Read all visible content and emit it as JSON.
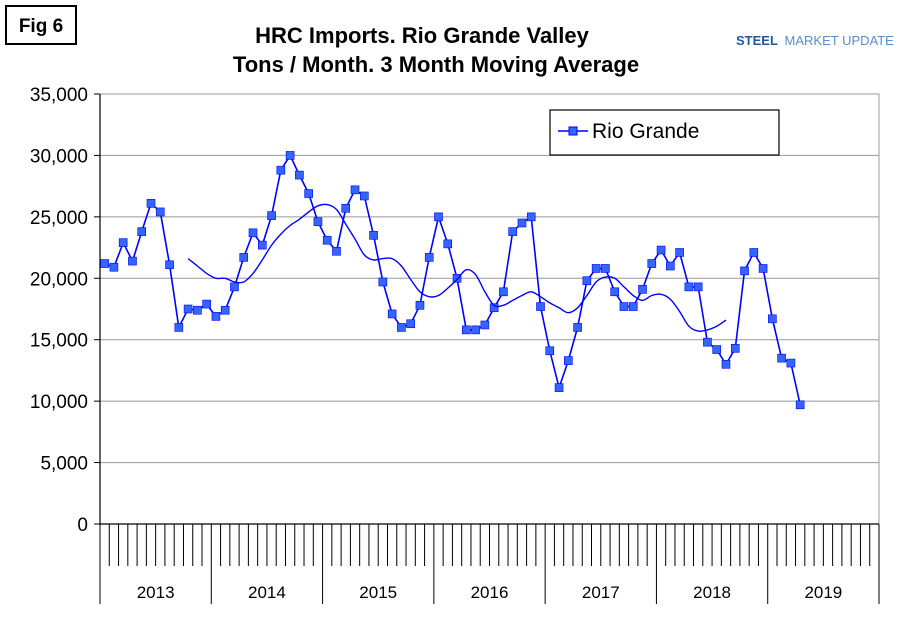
{
  "figure_label": "Fig 6",
  "logo": {
    "strong": "STEEL",
    "rest": "MARKET UPDATE",
    "strong_color": "#1f5a9e",
    "rest_color": "#5a8cc8"
  },
  "colors": {
    "series": "#0000ff",
    "marker": "#3366ff",
    "grid": "#999999",
    "axis": "#000000"
  },
  "chart_data": {
    "type": "line",
    "title": "HRC Imports. Rio Grande Valley",
    "subtitle": "Tons / Month. 3 Month Moving Average",
    "xlabel": "",
    "ylabel": "",
    "ylim": [
      0,
      35000
    ],
    "yticks": [
      0,
      5000,
      10000,
      15000,
      20000,
      25000,
      30000,
      35000
    ],
    "ytick_labels": [
      "0",
      "5,000",
      "10,000",
      "15,000",
      "20,000",
      "25,000",
      "30,000",
      "35,000"
    ],
    "years": [
      "2013",
      "2014",
      "2015",
      "2016",
      "2017",
      "2018",
      "2019"
    ],
    "months_total": 84,
    "grid": "horizontal",
    "legend": {
      "position": "top-right",
      "entries": [
        "Rio Grande"
      ]
    },
    "series": [
      {
        "name": "Rio Grande",
        "marker": "square",
        "values": [
          21200,
          20900,
          22900,
          21400,
          23800,
          26100,
          25400,
          21100,
          16000,
          17500,
          17400,
          17900,
          16900,
          17400,
          19300,
          21700,
          23700,
          22700,
          25100,
          28800,
          30000,
          28400,
          26900,
          24600,
          23100,
          22200,
          25700,
          27200,
          26700,
          23500,
          19700,
          17100,
          16000,
          16300,
          17800,
          21700,
          25000,
          22800,
          20000,
          15800,
          15800,
          16200,
          17600,
          18900,
          23800,
          24500,
          25000,
          17700,
          14100,
          11100,
          13300,
          16000,
          19800,
          20800,
          20800,
          18900,
          17700,
          17700,
          19100,
          21200,
          22300,
          21000,
          22100,
          19300,
          19300,
          14800,
          14200,
          13000,
          14300,
          20600,
          22100,
          20800,
          16700,
          13500,
          13100,
          9700
        ]
      },
      {
        "name": "",
        "marker": "none",
        "start_index": 9,
        "values": [
          21600,
          21000,
          20400,
          20000,
          20000,
          19700,
          19700,
          20400,
          21500,
          22700,
          23600,
          24300,
          24800,
          25400,
          25900,
          26000,
          25600,
          24400,
          23200,
          21900,
          21500,
          21600,
          21600,
          21000,
          19900,
          18900,
          18500,
          18600,
          19200,
          19900,
          20700,
          20300,
          18900,
          17800,
          17800,
          18200,
          18600,
          18900,
          18500,
          18000,
          17600,
          17200,
          17600,
          18600,
          19700,
          20100,
          20000,
          19300,
          18600,
          18200,
          18600,
          18700,
          18300,
          17300,
          16100,
          15700,
          15800,
          16100,
          16600
        ]
      }
    ]
  }
}
